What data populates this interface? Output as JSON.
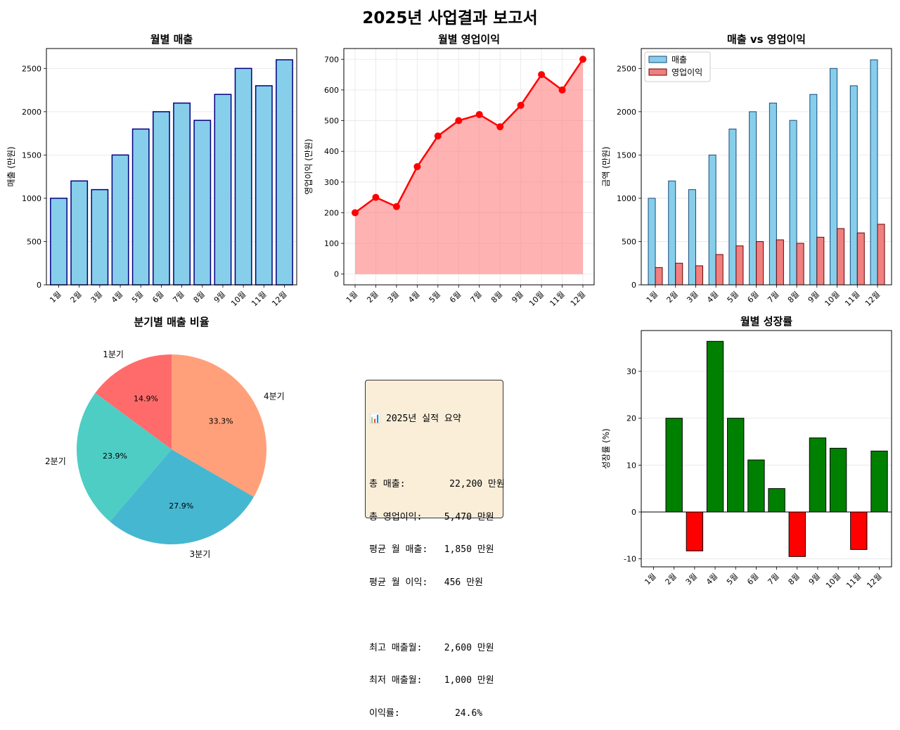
{
  "figure": {
    "title": "2025년 사업결과 보고서"
  },
  "chart_data": [
    {
      "id": "monthly-sales",
      "type": "bar",
      "title": "월별 매출",
      "ylabel": "매출 (만원)",
      "xlabel": "",
      "categories": [
        "1월",
        "2월",
        "3월",
        "4월",
        "5월",
        "6월",
        "7월",
        "8월",
        "9월",
        "10월",
        "11월",
        "12월"
      ],
      "values": [
        1000,
        1200,
        1100,
        1500,
        1800,
        2000,
        2100,
        1900,
        2200,
        2500,
        2300,
        2600
      ],
      "ylim": [
        0,
        2730
      ],
      "yticks": [
        0,
        500,
        1000,
        1500,
        2000,
        2500
      ],
      "grid": true,
      "colors": {
        "fill": "#87ceeb",
        "edge": "#000080"
      }
    },
    {
      "id": "monthly-profit",
      "type": "line",
      "title": "월별 영업이익",
      "ylabel": "영업이익 (만원)",
      "xlabel": "",
      "categories": [
        "1월",
        "2월",
        "3월",
        "4월",
        "5월",
        "6월",
        "7월",
        "8월",
        "9월",
        "10월",
        "11월",
        "12월"
      ],
      "values": [
        200,
        250,
        220,
        350,
        450,
        500,
        520,
        480,
        550,
        650,
        600,
        700
      ],
      "ylim": [
        -35,
        735
      ],
      "yticks": [
        0,
        100,
        200,
        300,
        400,
        500,
        600,
        700
      ],
      "grid": true,
      "colors": {
        "line": "#ff0000",
        "area": "#ff7f7f"
      }
    },
    {
      "id": "sales-vs-profit",
      "type": "bar",
      "title": "매출 vs 영업이익",
      "ylabel": "금액 (만원)",
      "xlabel": "",
      "categories": [
        "1월",
        "2월",
        "3월",
        "4월",
        "5월",
        "6월",
        "7월",
        "8월",
        "9월",
        "10월",
        "11월",
        "12월"
      ],
      "series": [
        {
          "name": "매출",
          "values": [
            1000,
            1200,
            1100,
            1500,
            1800,
            2000,
            2100,
            1900,
            2200,
            2500,
            2300,
            2600
          ],
          "color": "#87ceeb"
        },
        {
          "name": "영업이익",
          "values": [
            200,
            250,
            220,
            350,
            450,
            500,
            520,
            480,
            550,
            650,
            600,
            700
          ],
          "color": "#f08080"
        }
      ],
      "ylim": [
        0,
        2730
      ],
      "yticks": [
        0,
        500,
        1000,
        1500,
        2000,
        2500
      ],
      "legend": "top-left",
      "grid": true
    },
    {
      "id": "quarterly-share",
      "type": "pie",
      "title": "분기별 매출 비율",
      "labels": [
        "1분기",
        "2분기",
        "3분기",
        "4분기"
      ],
      "values": [
        3300,
        5300,
        6200,
        7400
      ],
      "pct_labels": [
        "14.9%",
        "23.9%",
        "27.9%",
        "33.3%"
      ],
      "colors": [
        "#ff6b6b",
        "#4ecdc4",
        "#45b7d1",
        "#ffa07a"
      ]
    },
    {
      "id": "monthly-growth",
      "type": "bar",
      "title": "월별 성장률",
      "ylabel": "성장률 (%)",
      "xlabel": "",
      "categories": [
        "1월",
        "2월",
        "3월",
        "4월",
        "5월",
        "6월",
        "7월",
        "8월",
        "9월",
        "10월",
        "11월",
        "12월"
      ],
      "values": [
        0,
        20.0,
        -8.3,
        36.4,
        20.0,
        11.1,
        5.0,
        -9.5,
        15.8,
        13.6,
        -8.0,
        13.0
      ],
      "ylim": [
        -11.7,
        38.7
      ],
      "yticks": [
        -10,
        0,
        10,
        20,
        30
      ],
      "grid": true,
      "colors": {
        "positive": "#008000",
        "negative": "#ff0000"
      }
    }
  ],
  "summary": {
    "lines": [
      "📊 2025년 실적 요약",
      "",
      "총 매출:        22,200 만원",
      "총 영업이익:    5,470 만원",
      "평균 월 매출:   1,850 만원",
      "평균 월 이익:   456 만원",
      "",
      "최고 매출월:    2,600 만원",
      "최저 매출월:    1,000 만원",
      "이익률:          24.6%"
    ]
  }
}
